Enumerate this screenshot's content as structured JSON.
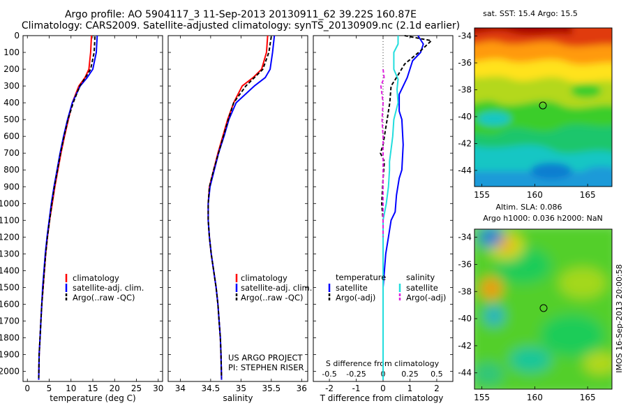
{
  "title_line1": "Argo profile: AO 5904117_3 11-Sep-2013 20130911_62 39.22S 160.87E",
  "title_line2": "Climatology: CARS2009. Satellite-adjusted climatology: synTS_20130909.nc (2.1d earlier)",
  "colors": {
    "climatology": "#ff0000",
    "satellite": "#0000ff",
    "argo": "#000000",
    "sal_satellite": "#22dddd",
    "sal_argo": "#dd22dd",
    "map_marker": "#000000"
  },
  "chart_data": [
    {
      "type": "line",
      "xlabel": "temperature (deg C)",
      "ylabel": "",
      "xlim": [
        -1,
        31
      ],
      "ylim": [
        2060,
        0
      ],
      "xticks": [
        0,
        5,
        10,
        15,
        20,
        25,
        30
      ],
      "yticks": [
        0,
        100,
        200,
        300,
        400,
        500,
        600,
        700,
        800,
        900,
        1000,
        1100,
        1200,
        1300,
        1400,
        1500,
        1600,
        1700,
        1800,
        1900,
        2000
      ],
      "legend": [
        "climatology",
        "satellite-adj. clim.",
        "Argo(..raw -QC)"
      ],
      "legend_position": "lower-center",
      "series": [
        {
          "name": "climatology",
          "x": [
            14.7,
            14.5,
            14.1,
            13.2,
            11.8,
            10.3,
            9.4,
            8.5,
            7.7,
            7.0,
            6.3,
            5.7,
            5.1,
            4.6,
            4.2,
            3.9,
            3.6,
            3.3,
            3.1,
            2.9,
            2.7,
            2.6
          ],
          "y": [
            0,
            100,
            200,
            250,
            300,
            400,
            500,
            600,
            700,
            800,
            900,
            1000,
            1100,
            1200,
            1300,
            1400,
            1500,
            1600,
            1700,
            1800,
            1900,
            2050
          ]
        },
        {
          "name": "satellite-adj. clim.",
          "x": [
            16.0,
            15.8,
            15.0,
            13.7,
            12.1,
            10.3,
            9.2,
            8.3,
            7.5,
            6.8,
            6.1,
            5.5,
            5.0,
            4.5,
            4.1,
            3.8,
            3.5,
            3.3,
            3.1,
            2.9,
            2.7,
            2.6
          ],
          "y": [
            0,
            100,
            200,
            250,
            300,
            400,
            500,
            600,
            700,
            800,
            900,
            1000,
            1100,
            1200,
            1300,
            1400,
            1500,
            1600,
            1700,
            1800,
            1900,
            2050
          ]
        },
        {
          "name": "Argo(..raw -QC)",
          "x": [
            15.5,
            15.3,
            14.5,
            13.3,
            12.0,
            10.5,
            9.3,
            8.4,
            7.6,
            6.9,
            6.2,
            5.6,
            5.1,
            4.6,
            4.2,
            3.9,
            3.6,
            3.3,
            3.1,
            2.9,
            2.7,
            2.6
          ],
          "y": [
            5,
            100,
            200,
            250,
            300,
            400,
            500,
            600,
            700,
            800,
            900,
            1000,
            1100,
            1200,
            1300,
            1400,
            1500,
            1600,
            1700,
            1800,
            1900,
            2040
          ]
        }
      ]
    },
    {
      "type": "line",
      "xlabel": "salinity",
      "ylabel": "",
      "xlim": [
        33.8,
        36.1
      ],
      "ylim": [
        2060,
        0
      ],
      "xticks": [
        34,
        34.5,
        35,
        35.5,
        36
      ],
      "xticklabels": [
        "34",
        "34.5",
        "35",
        "35.5",
        "36"
      ],
      "legend": [
        "climatology",
        "satellite-adj. clim.",
        "Argo(..raw -QC)"
      ],
      "legend_position": "lower-right",
      "annotation": [
        "US ARGO PROJECT",
        "PI: STEPHEN RISER"
      ],
      "series": [
        {
          "name": "climatology",
          "x": [
            35.44,
            35.42,
            35.34,
            35.2,
            35.02,
            34.88,
            34.78,
            34.7,
            34.62,
            34.55,
            34.48,
            34.46,
            34.46,
            34.48,
            34.51,
            34.55,
            34.59,
            34.62,
            34.64,
            34.66,
            34.67,
            34.68
          ],
          "y": [
            0,
            100,
            200,
            250,
            300,
            400,
            500,
            600,
            700,
            800,
            900,
            1000,
            1100,
            1200,
            1300,
            1400,
            1500,
            1600,
            1700,
            1800,
            1900,
            2050
          ]
        },
        {
          "name": "satellite-adj. clim.",
          "x": [
            35.55,
            35.52,
            35.48,
            35.4,
            35.22,
            34.92,
            34.8,
            34.72,
            34.63,
            34.56,
            34.49,
            34.46,
            34.46,
            34.48,
            34.51,
            34.55,
            34.59,
            34.62,
            34.64,
            34.66,
            34.67,
            34.68
          ],
          "y": [
            0,
            100,
            200,
            250,
            300,
            400,
            500,
            600,
            700,
            800,
            900,
            1000,
            1100,
            1200,
            1300,
            1400,
            1500,
            1600,
            1700,
            1800,
            1900,
            2050
          ]
        },
        {
          "name": "Argo(..raw -QC)",
          "x": [
            35.5,
            35.46,
            35.36,
            35.22,
            35.08,
            34.88,
            34.79,
            34.71,
            34.63,
            34.55,
            34.48,
            34.46,
            34.46,
            34.48,
            34.51,
            34.55,
            34.59,
            34.62,
            34.64,
            34.66,
            34.67,
            34.68
          ],
          "y": [
            5,
            100,
            200,
            250,
            300,
            400,
            500,
            600,
            700,
            800,
            900,
            1000,
            1100,
            1200,
            1300,
            1400,
            1500,
            1600,
            1700,
            1800,
            1900,
            2040
          ]
        }
      ]
    },
    {
      "type": "line",
      "xlabel": "T difference from climatology",
      "xlabel_top": "S difference from climatology",
      "ylabel": "",
      "xlim": [
        -2.6,
        2.6
      ],
      "ylim": [
        2060,
        0
      ],
      "xticks": [
        -2,
        -1,
        0,
        1,
        2
      ],
      "xticklabels": [
        "-2",
        "-1",
        "0",
        "1",
        "2"
      ],
      "s_xticks": [
        -0.5,
        -0.25,
        0,
        0.25,
        0.5
      ],
      "s_xticklabels": [
        "-0.5",
        "-0.25",
        "0",
        "0.25",
        "0.5"
      ],
      "legend_left": {
        "title": "temperature",
        "items": [
          "satellite",
          "Argo(-adj)"
        ]
      },
      "legend_right": {
        "title": "salinity",
        "items": [
          "satellite",
          "Argo(-adj)"
        ]
      },
      "legend_position": "lower-center",
      "series": [
        {
          "name": "temperature satellite",
          "x": [
            1.3,
            1.5,
            1.4,
            1.1,
            0.9,
            0.6,
            0.6,
            0.7,
            0.75,
            0.7,
            0.6,
            0.5,
            0.45,
            0.3,
            0.2,
            0.1,
            0.05,
            0.0,
            0.0,
            0.0,
            0.0,
            0.0,
            0.0
          ],
          "y": [
            0,
            50,
            100,
            150,
            250,
            350,
            450,
            500,
            650,
            800,
            850,
            950,
            1050,
            1100,
            1200,
            1300,
            1400,
            1500,
            1600,
            1700,
            1800,
            1900,
            2050
          ]
        },
        {
          "name": "temperature Argo(-adj)",
          "x": [
            0.8,
            1.8,
            1.4,
            0.8,
            0.5,
            0.3,
            0.25,
            0.15,
            0.1,
            0.0,
            -0.1,
            0.05,
            0.0,
            -0.05,
            0.0,
            0.0,
            0.0,
            0.0,
            0.0,
            0.0,
            0.0,
            0.0,
            0.0,
            0.0
          ],
          "y": [
            0,
            30,
            90,
            170,
            250,
            300,
            400,
            500,
            550,
            650,
            700,
            750,
            850,
            1000,
            1100,
            1200,
            1300,
            1400,
            1500,
            1600,
            1700,
            1800,
            1900,
            2040
          ]
        },
        {
          "name": "salinity satellite",
          "x": [
            0.14,
            0.14,
            0.1,
            0.1,
            0.14,
            0.13,
            0.14,
            0.1,
            0.09,
            0.08,
            0.06,
            0.06,
            0.05,
            0.03,
            0.0,
            0.0,
            0.0,
            0.0,
            0.0,
            0.0,
            0.0,
            0.0,
            0.0,
            0.0
          ],
          "y": [
            0,
            50,
            100,
            200,
            260,
            320,
            400,
            500,
            600,
            650,
            750,
            800,
            900,
            1000,
            1100,
            1200,
            1300,
            1400,
            1500,
            1600,
            1700,
            1800,
            1900,
            2050
          ]
        },
        {
          "name": "salinity Argo(-adj)",
          "x": [
            0.0,
            0.01,
            -0.02,
            0.0,
            -0.01,
            0.0,
            0.0,
            0.0,
            0.0,
            0.0,
            0.0,
            0.0,
            0.0
          ],
          "y": [
            200,
            250,
            300,
            400,
            500,
            600,
            700,
            800,
            850,
            900,
            1000,
            1100,
            1200
          ]
        }
      ]
    },
    {
      "type": "heatmap",
      "title": "sat. SST: 15.4  Argo: 15.5",
      "xlim": [
        154.3,
        167.3
      ],
      "ylim": [
        -45.2,
        -33.4
      ],
      "xticks": [
        155,
        160,
        165
      ],
      "yticks": [
        -34,
        -36,
        -38,
        -40,
        -42,
        -44
      ],
      "marker": {
        "lon": 160.87,
        "lat": -39.22
      }
    },
    {
      "type": "heatmap",
      "title_line1": "Altim. SLA: 0.086",
      "title_line2": "Argo h1000: 0.036 h2000: NaN",
      "side_label": "IMOS 16-Sep-2013 20:00:58",
      "xlim": [
        154.3,
        167.3
      ],
      "ylim": [
        -45.2,
        -33.4
      ],
      "xticks": [
        155,
        160,
        165
      ],
      "yticks": [
        -34,
        -36,
        -38,
        -40,
        -42,
        -44
      ],
      "marker": {
        "lon": 160.87,
        "lat": -39.22
      }
    }
  ]
}
